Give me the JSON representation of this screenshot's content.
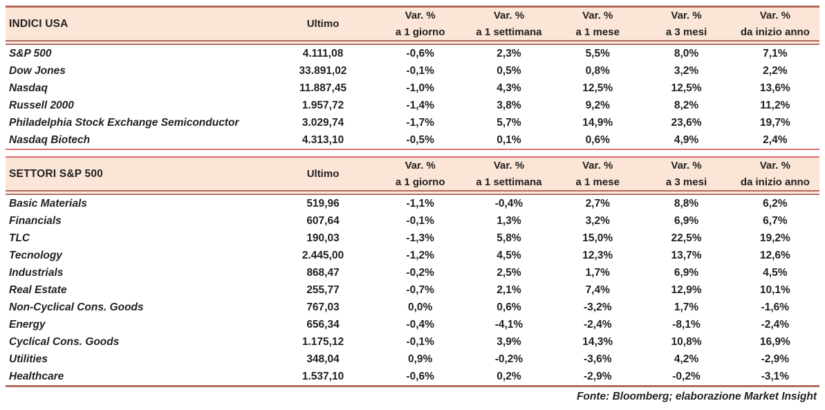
{
  "columns": {
    "ultimo_label": "Ultimo",
    "var_label": "Var. %",
    "periods": [
      "a 1 giorno",
      "a 1 settimana",
      "a 1 mese",
      "a 3 mesi",
      "da inizio anno"
    ]
  },
  "tables": [
    {
      "title": "INDICI USA",
      "rows": [
        {
          "name": "S&P 500",
          "ultimo": "4.111,08",
          "values": [
            "-0,6%",
            "2,3%",
            "5,5%",
            "8,0%",
            "7,1%"
          ]
        },
        {
          "name": "Dow Jones",
          "ultimo": "33.891,02",
          "values": [
            "-0,1%",
            "0,5%",
            "0,8%",
            "3,2%",
            "2,2%"
          ]
        },
        {
          "name": "Nasdaq",
          "ultimo": "11.887,45",
          "values": [
            "-1,0%",
            "4,3%",
            "12,5%",
            "12,5%",
            "13,6%"
          ]
        },
        {
          "name": "Russell 2000",
          "ultimo": "1.957,72",
          "values": [
            "-1,4%",
            "3,8%",
            "9,2%",
            "8,2%",
            "11,2%"
          ]
        },
        {
          "name": "Philadelphia Stock Exchange Semiconductor",
          "ultimo": "3.029,74",
          "values": [
            "-1,7%",
            "5,7%",
            "14,9%",
            "23,6%",
            "19,7%"
          ]
        },
        {
          "name": "Nasdaq Biotech",
          "ultimo": "4.313,10",
          "values": [
            "-0,5%",
            "0,1%",
            "0,6%",
            "4,9%",
            "2,4%"
          ]
        }
      ]
    },
    {
      "title": "SETTORI S&P 500",
      "rows": [
        {
          "name": "Basic Materials",
          "ultimo": "519,96",
          "values": [
            "-1,1%",
            "-0,4%",
            "2,7%",
            "8,8%",
            "6,2%"
          ]
        },
        {
          "name": "Financials",
          "ultimo": "607,64",
          "values": [
            "-0,1%",
            "1,3%",
            "3,2%",
            "6,9%",
            "6,7%"
          ]
        },
        {
          "name": "TLC",
          "ultimo": "190,03",
          "values": [
            "-1,3%",
            "5,8%",
            "15,0%",
            "22,5%",
            "19,2%"
          ]
        },
        {
          "name": "Tecnology",
          "ultimo": "2.445,00",
          "values": [
            "-1,2%",
            "4,5%",
            "12,3%",
            "13,7%",
            "12,6%"
          ]
        },
        {
          "name": "Industrials",
          "ultimo": "868,47",
          "values": [
            "-0,2%",
            "2,5%",
            "1,7%",
            "6,9%",
            "4,5%"
          ]
        },
        {
          "name": "Real Estate",
          "ultimo": "255,77",
          "values": [
            "-0,7%",
            "2,1%",
            "7,4%",
            "12,9%",
            "10,1%"
          ]
        },
        {
          "name": "Non-Cyclical Cons. Goods",
          "ultimo": "767,03",
          "values": [
            "0,0%",
            "0,6%",
            "-3,2%",
            "1,7%",
            "-1,6%"
          ]
        },
        {
          "name": "Energy",
          "ultimo": "656,34",
          "values": [
            "-0,4%",
            "-4,1%",
            "-2,4%",
            "-8,1%",
            "-2,4%"
          ]
        },
        {
          "name": "Cyclical Cons. Goods",
          "ultimo": "1.175,12",
          "values": [
            "-0,1%",
            "3,9%",
            "14,3%",
            "10,8%",
            "16,9%"
          ]
        },
        {
          "name": "Utilities",
          "ultimo": "348,04",
          "values": [
            "0,9%",
            "-0,2%",
            "-3,6%",
            "4,2%",
            "-2,9%"
          ]
        },
        {
          "name": "Healthcare",
          "ultimo": "1.537,10",
          "values": [
            "-0,6%",
            "0,2%",
            "-2,9%",
            "-0,2%",
            "-3,1%"
          ]
        }
      ]
    }
  ],
  "footer": "Fonte: Bloomberg; elaborazione Market Insight",
  "colors": {
    "header_bg": "#fbe5d6",
    "line_dark": "#b2695c",
    "line_red": "#e26b6b",
    "text": "#1f1f1f"
  }
}
